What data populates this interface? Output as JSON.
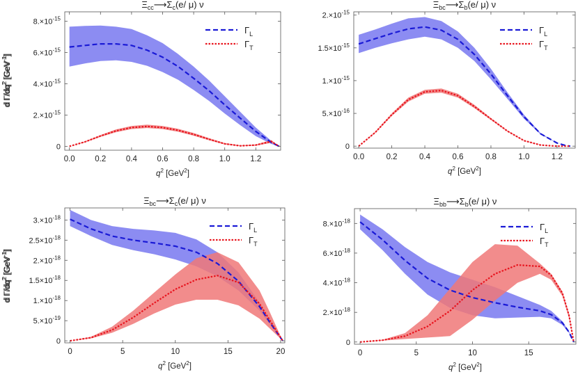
{
  "chart_data": [
    {
      "type": "area",
      "title": "Ξcc⟶Σc(e/ μ) ν",
      "title_parts": {
        "main": "Ξ",
        "main_sub": "cc",
        "arrow": "⟶",
        "prod": "Σ",
        "prod_sub": "c",
        "tail": "(e/ μ) ν"
      },
      "xlabel": "q",
      "xlabel_sup": "2",
      "xlabel_unit": " [GeV",
      "xlabel_unit_sup": "2",
      "xlabel_close": "]",
      "ylabel": "d Γ/dq",
      "ylabel_sup": "2",
      "ylabel_unit": " [GeV",
      "ylabel_unit_sup": "-1",
      "ylabel_close": "]",
      "xlim": [
        -0.03,
        1.36
      ],
      "ylim": [
        -2.5e-16,
        8.6e-15
      ],
      "xticks": [
        0,
        0.2,
        0.4,
        0.6,
        0.8,
        1.0,
        1.2
      ],
      "xtick_labels": [
        "0.0",
        "0.2",
        "0.4",
        "0.6",
        "0.8",
        "1.0",
        "1.2"
      ],
      "yticks": [
        0,
        2e-15,
        4e-15,
        6e-15,
        8e-15
      ],
      "ytick_labels": [
        {
          "m": "0",
          "e": ""
        },
        {
          "m": "2.×10",
          "e": "-15"
        },
        {
          "m": "4.×10",
          "e": "-15"
        },
        {
          "m": "6.×10",
          "e": "-15"
        },
        {
          "m": "8.×10",
          "e": "-15"
        }
      ],
      "legend_position": "top-right",
      "series": [
        {
          "name": "ΓL",
          "label": "Γ",
          "label_sub": "L",
          "color": "#1a1ad6",
          "band_color": "#7878f0",
          "dash": "dashed",
          "x": [
            0,
            0.1,
            0.2,
            0.3,
            0.4,
            0.5,
            0.6,
            0.7,
            0.8,
            0.9,
            1.0,
            1.1,
            1.2,
            1.3,
            1.35
          ],
          "upper": [
            7.65e-15,
            7.7e-15,
            7.72e-15,
            7.65e-15,
            7.5e-15,
            7.1e-15,
            6.6e-15,
            5.9e-15,
            5.1e-15,
            4.2e-15,
            3.2e-15,
            2.2e-15,
            1.2e-15,
            3.5e-16,
            0
          ],
          "lower": [
            5.1e-15,
            5.3e-15,
            5.45e-15,
            5.5e-15,
            5.4e-15,
            5.15e-15,
            4.75e-15,
            4.25e-15,
            3.6e-15,
            2.9e-15,
            2.1e-15,
            1.35e-15,
            6.5e-16,
            1.5e-16,
            0
          ],
          "center": [
            6.35e-15,
            6.45e-15,
            6.55e-15,
            6.55e-15,
            6.45e-15,
            6.15e-15,
            5.7e-15,
            5.1e-15,
            4.35e-15,
            3.55e-15,
            2.65e-15,
            1.8e-15,
            9.5e-16,
            2.5e-16,
            0
          ]
        },
        {
          "name": "ΓT",
          "label": "Γ",
          "label_sub": "T",
          "color": "#e8141e",
          "band_color": "#f07878",
          "dash": "dotted",
          "x": [
            0,
            0.1,
            0.2,
            0.3,
            0.4,
            0.5,
            0.6,
            0.7,
            0.8,
            0.9,
            1.0,
            1.1,
            1.2,
            1.3,
            1.35
          ],
          "upper": [
            0,
            3.2e-16,
            7.2e-16,
            1.08e-15,
            1.3e-15,
            1.38e-15,
            1.3e-15,
            1.12e-15,
            8.5e-16,
            5.2e-16,
            2.1e-16,
            6e-17,
            1.2e-16,
            4e-16,
            0
          ],
          "lower": [
            0,
            2.5e-16,
            6e-16,
            9e-16,
            1.1e-15,
            1.17e-15,
            1.1e-15,
            9.3e-16,
            6.8e-16,
            3.8e-16,
            1.2e-16,
            1e-17,
            4e-17,
            2.2e-16,
            0
          ],
          "center": [
            0,
            2.85e-16,
            6.6e-16,
            9.9e-16,
            1.2e-15,
            1.27e-15,
            1.2e-15,
            1.02e-15,
            7.6e-16,
            4.5e-16,
            1.6e-16,
            3e-17,
            8e-17,
            3.1e-16,
            0
          ]
        }
      ]
    },
    {
      "type": "area",
      "title": "Ξbc⟶Σb(e/ μ) ν",
      "title_parts": {
        "main": "Ξ",
        "main_sub": "bc",
        "arrow": "⟶",
        "prod": "Σ",
        "prod_sub": "b",
        "tail": "(e/ μ) ν"
      },
      "xlabel": "q",
      "xlabel_sup": "2",
      "xlabel_unit": " [GeV",
      "xlabel_unit_sup": "2",
      "xlabel_close": "]",
      "ylabel": "d Γ/dq",
      "ylabel_sup": "2",
      "ylabel_unit": " [GeV",
      "ylabel_unit_sup": "-1",
      "ylabel_close": "]",
      "xlim": [
        -0.03,
        1.31
      ],
      "ylim": [
        -3e-17,
        2.05e-15
      ],
      "xticks": [
        0,
        0.2,
        0.4,
        0.6,
        0.8,
        1.0,
        1.2
      ],
      "xtick_labels": [
        "0.0",
        "0.2",
        "0.4",
        "0.6",
        "0.8",
        "1.0",
        "1.2"
      ],
      "yticks": [
        0,
        5e-16,
        1e-15,
        1.5e-15,
        2e-15
      ],
      "ytick_labels": [
        {
          "m": "0",
          "e": ""
        },
        {
          "m": "5.×10",
          "e": "-16"
        },
        {
          "m": "1.×10",
          "e": "-15"
        },
        {
          "m": "1.5×10",
          "e": "-15"
        },
        {
          "m": "2.×10",
          "e": "-15"
        }
      ],
      "legend_position": "top-right",
      "series": [
        {
          "name": "ΓL",
          "label": "Γ",
          "label_sub": "L",
          "color": "#1a1ad6",
          "band_color": "#7878f0",
          "dash": "dashed",
          "x": [
            0,
            0.1,
            0.2,
            0.3,
            0.4,
            0.5,
            0.6,
            0.7,
            0.8,
            0.9,
            1.0,
            1.1,
            1.2,
            1.25,
            1.28
          ],
          "upper": [
            1.7e-15,
            1.78e-15,
            1.87e-15,
            1.95e-15,
            1.97e-15,
            1.91e-15,
            1.75e-15,
            1.5e-15,
            1.18e-15,
            8.2e-16,
            4.8e-16,
            2e-16,
            5e-17,
            1e-17,
            0
          ],
          "lower": [
            1.42e-15,
            1.5e-15,
            1.57e-15,
            1.63e-15,
            1.67e-15,
            1.63e-15,
            1.5e-15,
            1.3e-15,
            1.02e-15,
            7.2e-16,
            4.2e-16,
            1.8e-16,
            4.5e-17,
            1e-17,
            0
          ],
          "center": [
            1.56e-15,
            1.64e-15,
            1.72e-15,
            1.79e-15,
            1.82e-15,
            1.77e-15,
            1.63e-15,
            1.4e-15,
            1.1e-15,
            7.7e-16,
            4.5e-16,
            1.9e-16,
            4.7e-17,
            1e-17,
            0
          ]
        },
        {
          "name": "ΓT",
          "label": "Γ",
          "label_sub": "T",
          "color": "#e8141e",
          "band_color": "#f07878",
          "dash": "dotted",
          "x": [
            0,
            0.1,
            0.2,
            0.3,
            0.4,
            0.5,
            0.6,
            0.7,
            0.8,
            0.9,
            1.0,
            1.1,
            1.2,
            1.25,
            1.28
          ],
          "upper": [
            0,
            2.2e-16,
            5e-16,
            7.4e-16,
            8.6e-16,
            8.8e-16,
            8e-16,
            6.3e-16,
            4.3e-16,
            2.4e-16,
            9e-17,
            2e-17,
            0,
            0,
            0
          ],
          "lower": [
            0,
            2e-16,
            4.6e-16,
            6.8e-16,
            8e-16,
            8.15e-16,
            7.4e-16,
            5.8e-16,
            4e-16,
            2.2e-16,
            8e-17,
            1.5e-17,
            0,
            0,
            0
          ],
          "center": [
            0,
            2.1e-16,
            4.8e-16,
            7.1e-16,
            8.3e-16,
            8.5e-16,
            7.7e-16,
            6.05e-16,
            4.15e-16,
            2.3e-16,
            8.5e-17,
            1.7e-17,
            0,
            0,
            0
          ]
        }
      ]
    },
    {
      "type": "area",
      "title": "Ξbc⟶Σc(e/ μ) ν",
      "title_parts": {
        "main": "Ξ",
        "main_sub": "bc",
        "arrow": "⟶",
        "prod": "Σ",
        "prod_sub": "c",
        "tail": "(e/ μ) ν"
      },
      "xlabel": "q",
      "xlabel_sup": "2",
      "xlabel_unit": " [GeV",
      "xlabel_unit_sup": "2",
      "xlabel_close": "]",
      "ylabel": "d Γ/dq",
      "ylabel_sup": "2",
      "ylabel_unit": " [GeV",
      "ylabel_unit_sup": "-1",
      "ylabel_close": "]",
      "xlim": [
        -0.5,
        20.4
      ],
      "ylim": [
        -5e-20,
        3.3e-18
      ],
      "xticks": [
        0,
        5,
        10,
        15,
        20
      ],
      "xtick_labels": [
        "0",
        "5",
        "10",
        "15",
        "20"
      ],
      "yticks": [
        0,
        5e-19,
        1e-18,
        1.5e-18,
        2e-18,
        2.5e-18,
        3e-18
      ],
      "ytick_labels": [
        {
          "m": "0",
          "e": ""
        },
        {
          "m": "5.×10",
          "e": "-19"
        },
        {
          "m": "1.×10",
          "e": "-18"
        },
        {
          "m": "1.5×10",
          "e": "-18"
        },
        {
          "m": "2.×10",
          "e": "-18"
        },
        {
          "m": "2.5×10",
          "e": "-18"
        },
        {
          "m": "3.×10",
          "e": "-18"
        }
      ],
      "legend_position": "top-right",
      "series": [
        {
          "name": "ΓL",
          "label": "Γ",
          "label_sub": "L",
          "color": "#1a1ad6",
          "band_color": "#7878f0",
          "dash": "dashed",
          "x": [
            0,
            2,
            4,
            6,
            8,
            10,
            12,
            14,
            16,
            18,
            19,
            20.2
          ],
          "upper": [
            3.25e-18,
            3e-18,
            2.85e-18,
            2.78e-18,
            2.74e-18,
            2.68e-18,
            2.52e-18,
            2.2e-18,
            1.7e-18,
            9.5e-19,
            5e-19,
            0
          ],
          "lower": [
            2.85e-18,
            2.6e-18,
            2.38e-18,
            2.25e-18,
            2.15e-18,
            2.02e-18,
            1.85e-18,
            1.6e-18,
            1.25e-18,
            7.5e-19,
            4e-19,
            0
          ],
          "center": [
            3.02e-18,
            2.78e-18,
            2.6e-18,
            2.5e-18,
            2.43e-18,
            2.35e-18,
            2.2e-18,
            1.92e-18,
            1.48e-18,
            8.5e-19,
            4.5e-19,
            0
          ]
        },
        {
          "name": "ΓT",
          "label": "Γ",
          "label_sub": "T",
          "color": "#e8141e",
          "band_color": "#f07878",
          "dash": "dotted",
          "x": [
            0,
            2,
            4,
            6,
            8,
            10,
            12,
            14,
            16,
            18,
            19,
            20.2
          ],
          "upper": [
            0,
            1e-19,
            3.5e-19,
            7.5e-19,
            1.2e-18,
            1.65e-18,
            2.05e-18,
            2.2e-18,
            1.95e-18,
            1.25e-18,
            7e-19,
            0
          ],
          "lower": [
            0,
            6e-20,
            2e-19,
            4.2e-19,
            6.8e-19,
            9e-19,
            1.02e-18,
            1.02e-18,
            8.8e-19,
            5.5e-19,
            3e-19,
            0
          ],
          "center": [
            0,
            8e-20,
            2.7e-19,
            5.8e-19,
            9.4e-19,
            1.28e-18,
            1.52e-18,
            1.62e-18,
            1.45e-18,
            9.2e-19,
            5e-19,
            0
          ]
        }
      ]
    },
    {
      "type": "area",
      "title": "Ξbb⟶Σb(e/ μ) ν",
      "title_parts": {
        "main": "Ξ",
        "main_sub": "bb",
        "arrow": "⟶",
        "prod": "Σ",
        "prod_sub": "b",
        "tail": "(e/ μ) ν"
      },
      "xlabel": "q",
      "xlabel_sup": "2",
      "xlabel_unit": " [GeV",
      "xlabel_unit_sup": "2",
      "xlabel_close": "]",
      "ylabel": "d Γ/dq",
      "ylabel_sup": "2",
      "ylabel_unit": " [GeV",
      "ylabel_unit_sup": "-1",
      "ylabel_close": "]",
      "xlim": [
        -0.5,
        19.2
      ],
      "ylim": [
        -1.5e-19,
        9e-18
      ],
      "xticks": [
        0,
        5,
        10,
        15
      ],
      "xtick_labels": [
        "0",
        "5",
        "10",
        "15"
      ],
      "yticks": [
        0,
        2e-18,
        4e-18,
        6e-18,
        8e-18
      ],
      "ytick_labels": [
        {
          "m": "0",
          "e": ""
        },
        {
          "m": "2.×10",
          "e": "-18"
        },
        {
          "m": "4.×10",
          "e": "-18"
        },
        {
          "m": "6.×10",
          "e": "-18"
        },
        {
          "m": "8.×10",
          "e": "-18"
        }
      ],
      "legend_position": "top-right",
      "series": [
        {
          "name": "ΓL",
          "label": "Γ",
          "label_sub": "L",
          "color": "#1a1ad6",
          "band_color": "#7878f0",
          "dash": "dashed",
          "x": [
            0,
            2,
            4,
            6,
            8,
            10,
            12,
            14,
            16,
            17,
            18,
            18.6,
            19
          ],
          "upper": [
            8.6e-18,
            7.6e-18,
            6.4e-18,
            5.4e-18,
            4.7e-18,
            4.2e-18,
            3.7e-18,
            3.1e-18,
            2.5e-18,
            2.1e-18,
            1.4e-18,
            7e-19,
            0
          ],
          "lower": [
            7.6e-18,
            6.2e-18,
            4.6e-18,
            3.2e-18,
            2.3e-18,
            1.8e-18,
            1.6e-18,
            1.65e-18,
            1.7e-18,
            1.6e-18,
            1.15e-18,
            6e-19,
            0
          ],
          "center": [
            8.1e-18,
            6.9e-18,
            5.5e-18,
            4.3e-18,
            3.5e-18,
            3e-18,
            2.65e-18,
            2.35e-18,
            2.1e-18,
            1.85e-18,
            1.3e-18,
            6.5e-19,
            0
          ]
        },
        {
          "name": "ΓT",
          "label": "Γ",
          "label_sub": "T",
          "color": "#e8141e",
          "band_color": "#f07878",
          "dash": "dotted",
          "x": [
            0,
            2,
            4,
            6,
            8,
            10,
            12,
            14,
            16,
            17,
            18,
            18.6,
            19
          ],
          "upper": [
            0,
            1.5e-19,
            6e-19,
            1.8e-18,
            3.6e-18,
            5.4e-18,
            6.6e-18,
            6.5e-18,
            5.3e-18,
            4.6e-18,
            3.4e-18,
            1.9e-18,
            0
          ],
          "lower": [
            0,
            1e-19,
            2e-19,
            3e-19,
            4e-19,
            1.5e-18,
            2.8e-18,
            4e-18,
            4.6e-18,
            4.2e-18,
            3.1e-18,
            1.6e-18,
            0
          ],
          "center": [
            0,
            1.2e-19,
            4e-19,
            1.05e-18,
            2.1e-18,
            3.5e-18,
            4.6e-18,
            5.2e-18,
            5.1e-18,
            4.5e-18,
            3.3e-18,
            1.75e-18,
            0
          ]
        }
      ]
    }
  ]
}
